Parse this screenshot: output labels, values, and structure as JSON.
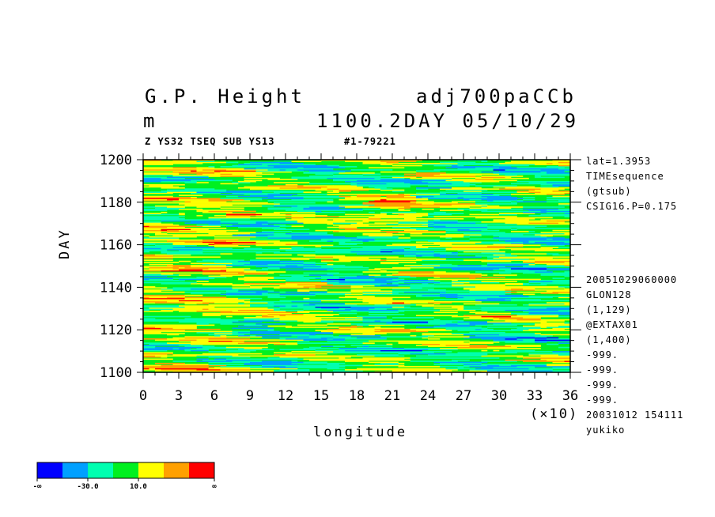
{
  "header": {
    "title_left": "G.P. Height",
    "title_right": "adj700paCCb",
    "units": "m",
    "time_info": "1100.2DAY 05/10/29",
    "subtitle_left": "Z YS32 TSEQ SUB YS13",
    "subtitle_right": "#1-79221"
  },
  "side_info": {
    "top": [
      "lat=1.3953",
      "TIMEsequence",
      "(gtsub)",
      "CSIG16.P=0.175"
    ],
    "bottom": [
      "20051029060000",
      "GLON128",
      "(1,129)",
      "@EXTAX01",
      "(1,400)",
      "-999.",
      "-999.",
      "-999.",
      "-999.",
      "20031012 154111",
      "yukiko"
    ]
  },
  "chart_data": {
    "type": "heatmap",
    "xlabel": "longitude",
    "ylabel": "DAY",
    "x_multiplier_label": "(×10)",
    "xlim": [
      0,
      36
    ],
    "ylim": [
      1100,
      1200
    ],
    "x_ticks": [
      0,
      3,
      6,
      9,
      12,
      15,
      18,
      21,
      24,
      27,
      30,
      33,
      36
    ],
    "y_ticks": [
      1100,
      1120,
      1140,
      1160,
      1180,
      1200
    ],
    "color_levels": [
      "#0000ff",
      "#00a0ff",
      "#00ffb0",
      "#00f020",
      "#ffff00",
      "#ffa000",
      "#ff0000"
    ],
    "colorbar_labels": [
      "-∞",
      "-30.0",
      "10.0",
      "∞"
    ]
  }
}
